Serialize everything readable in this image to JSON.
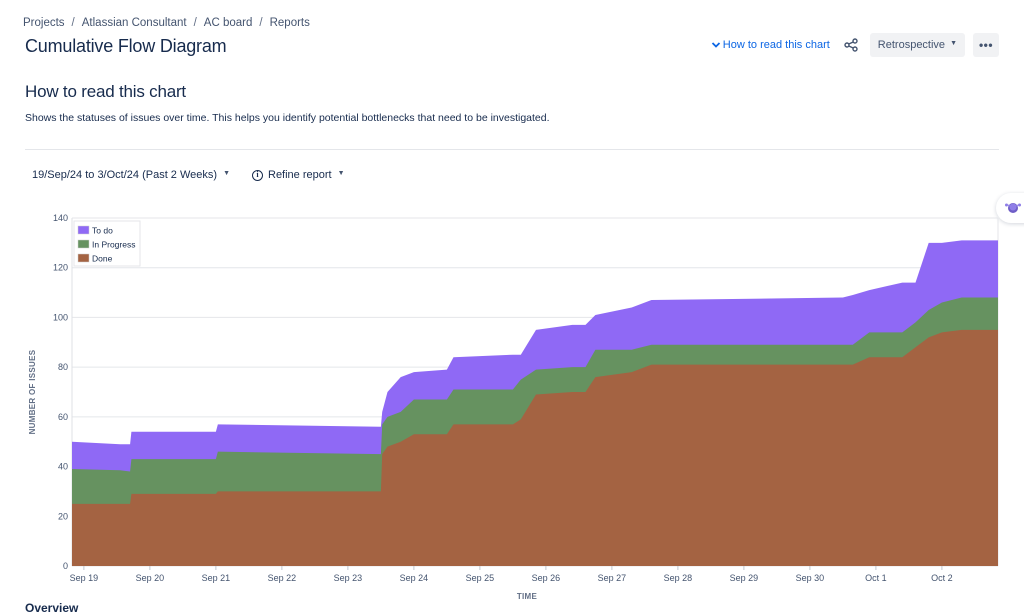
{
  "breadcrumb": [
    "Projects",
    "Atlassian Consultant",
    "AC board",
    "Reports"
  ],
  "breadcrumb_separator": "/",
  "page_title": "Cumulative Flow Diagram",
  "header": {
    "how_to_read_link": "How to read this chart",
    "share_icon": "share-icon",
    "board_select": "Retrospective",
    "more_icon": "•••"
  },
  "info_section": {
    "title": "How to read this chart",
    "description": "Shows the statuses of issues over time. This helps you identify potential bottlenecks that need to be investigated."
  },
  "filters": {
    "date_range": "19/Sep/24 to 3/Oct/24 (Past 2 Weeks)",
    "refine_report": "Refine report",
    "info_icon": "i"
  },
  "overview_heading": "Overview",
  "colors": {
    "todo": "#8f69f5",
    "in_progress": "#669260",
    "done": "#a46342",
    "link": "#0c66e4"
  },
  "chart_data": {
    "type": "area",
    "stacked": true,
    "title": "",
    "xlabel": "TIME",
    "ylabel": "NUMBER OF ISSUES",
    "ylim": [
      0,
      140
    ],
    "yticks": [
      0,
      20,
      40,
      60,
      80,
      100,
      120,
      140
    ],
    "xlim_days": [
      -0.18,
      13.85
    ],
    "x_ticks": [
      {
        "day": 0,
        "label": "Sep 19"
      },
      {
        "day": 1,
        "label": "Sep 20"
      },
      {
        "day": 2,
        "label": "Sep 21"
      },
      {
        "day": 3,
        "label": "Sep 22"
      },
      {
        "day": 4,
        "label": "Sep 23"
      },
      {
        "day": 5,
        "label": "Sep 24"
      },
      {
        "day": 6,
        "label": "Sep 25"
      },
      {
        "day": 7,
        "label": "Sep 26"
      },
      {
        "day": 8,
        "label": "Sep 27"
      },
      {
        "day": 9,
        "label": "Sep 28"
      },
      {
        "day": 10,
        "label": "Sep 29"
      },
      {
        "day": 11,
        "label": "Sep 30"
      },
      {
        "day": 12,
        "label": "Oct 1"
      },
      {
        "day": 13,
        "label": "Oct 2"
      }
    ],
    "grid": true,
    "legend_position": "top-left",
    "legend": [
      "To do",
      "In Progress",
      "Done"
    ],
    "x_days": [
      -0.18,
      0.55,
      0.7,
      0.72,
      2.0,
      2.03,
      4.5,
      4.52,
      4.6,
      4.8,
      5.0,
      5.5,
      5.6,
      6.5,
      6.62,
      6.85,
      7.4,
      7.6,
      7.75,
      8.3,
      8.6,
      11.5,
      11.65,
      11.9,
      12.4,
      12.6,
      12.8,
      13.0,
      13.3,
      13.85
    ],
    "series": [
      {
        "name": "Done",
        "values": [
          25,
          25,
          25,
          29,
          29,
          30,
          30,
          45,
          48,
          50,
          53,
          53,
          57,
          57,
          59,
          69,
          70,
          70,
          76,
          78,
          81,
          81,
          81,
          84,
          84,
          88,
          92,
          94,
          95,
          95
        ]
      },
      {
        "name": "In Progress",
        "values": [
          14,
          13.5,
          13,
          14,
          14,
          16,
          15,
          12,
          12,
          12,
          14,
          14,
          14,
          14,
          16,
          10,
          10,
          10,
          11,
          9,
          8,
          8,
          8,
          10,
          10,
          10,
          11,
          12,
          13,
          13
        ]
      },
      {
        "name": "To do",
        "values": [
          11,
          10.5,
          11,
          11,
          11,
          11,
          11,
          5,
          10,
          14,
          11,
          12,
          13,
          14,
          10,
          16,
          17,
          17,
          14,
          17,
          18,
          19,
          20,
          17,
          20,
          16,
          27,
          24,
          23,
          23
        ]
      }
    ]
  }
}
